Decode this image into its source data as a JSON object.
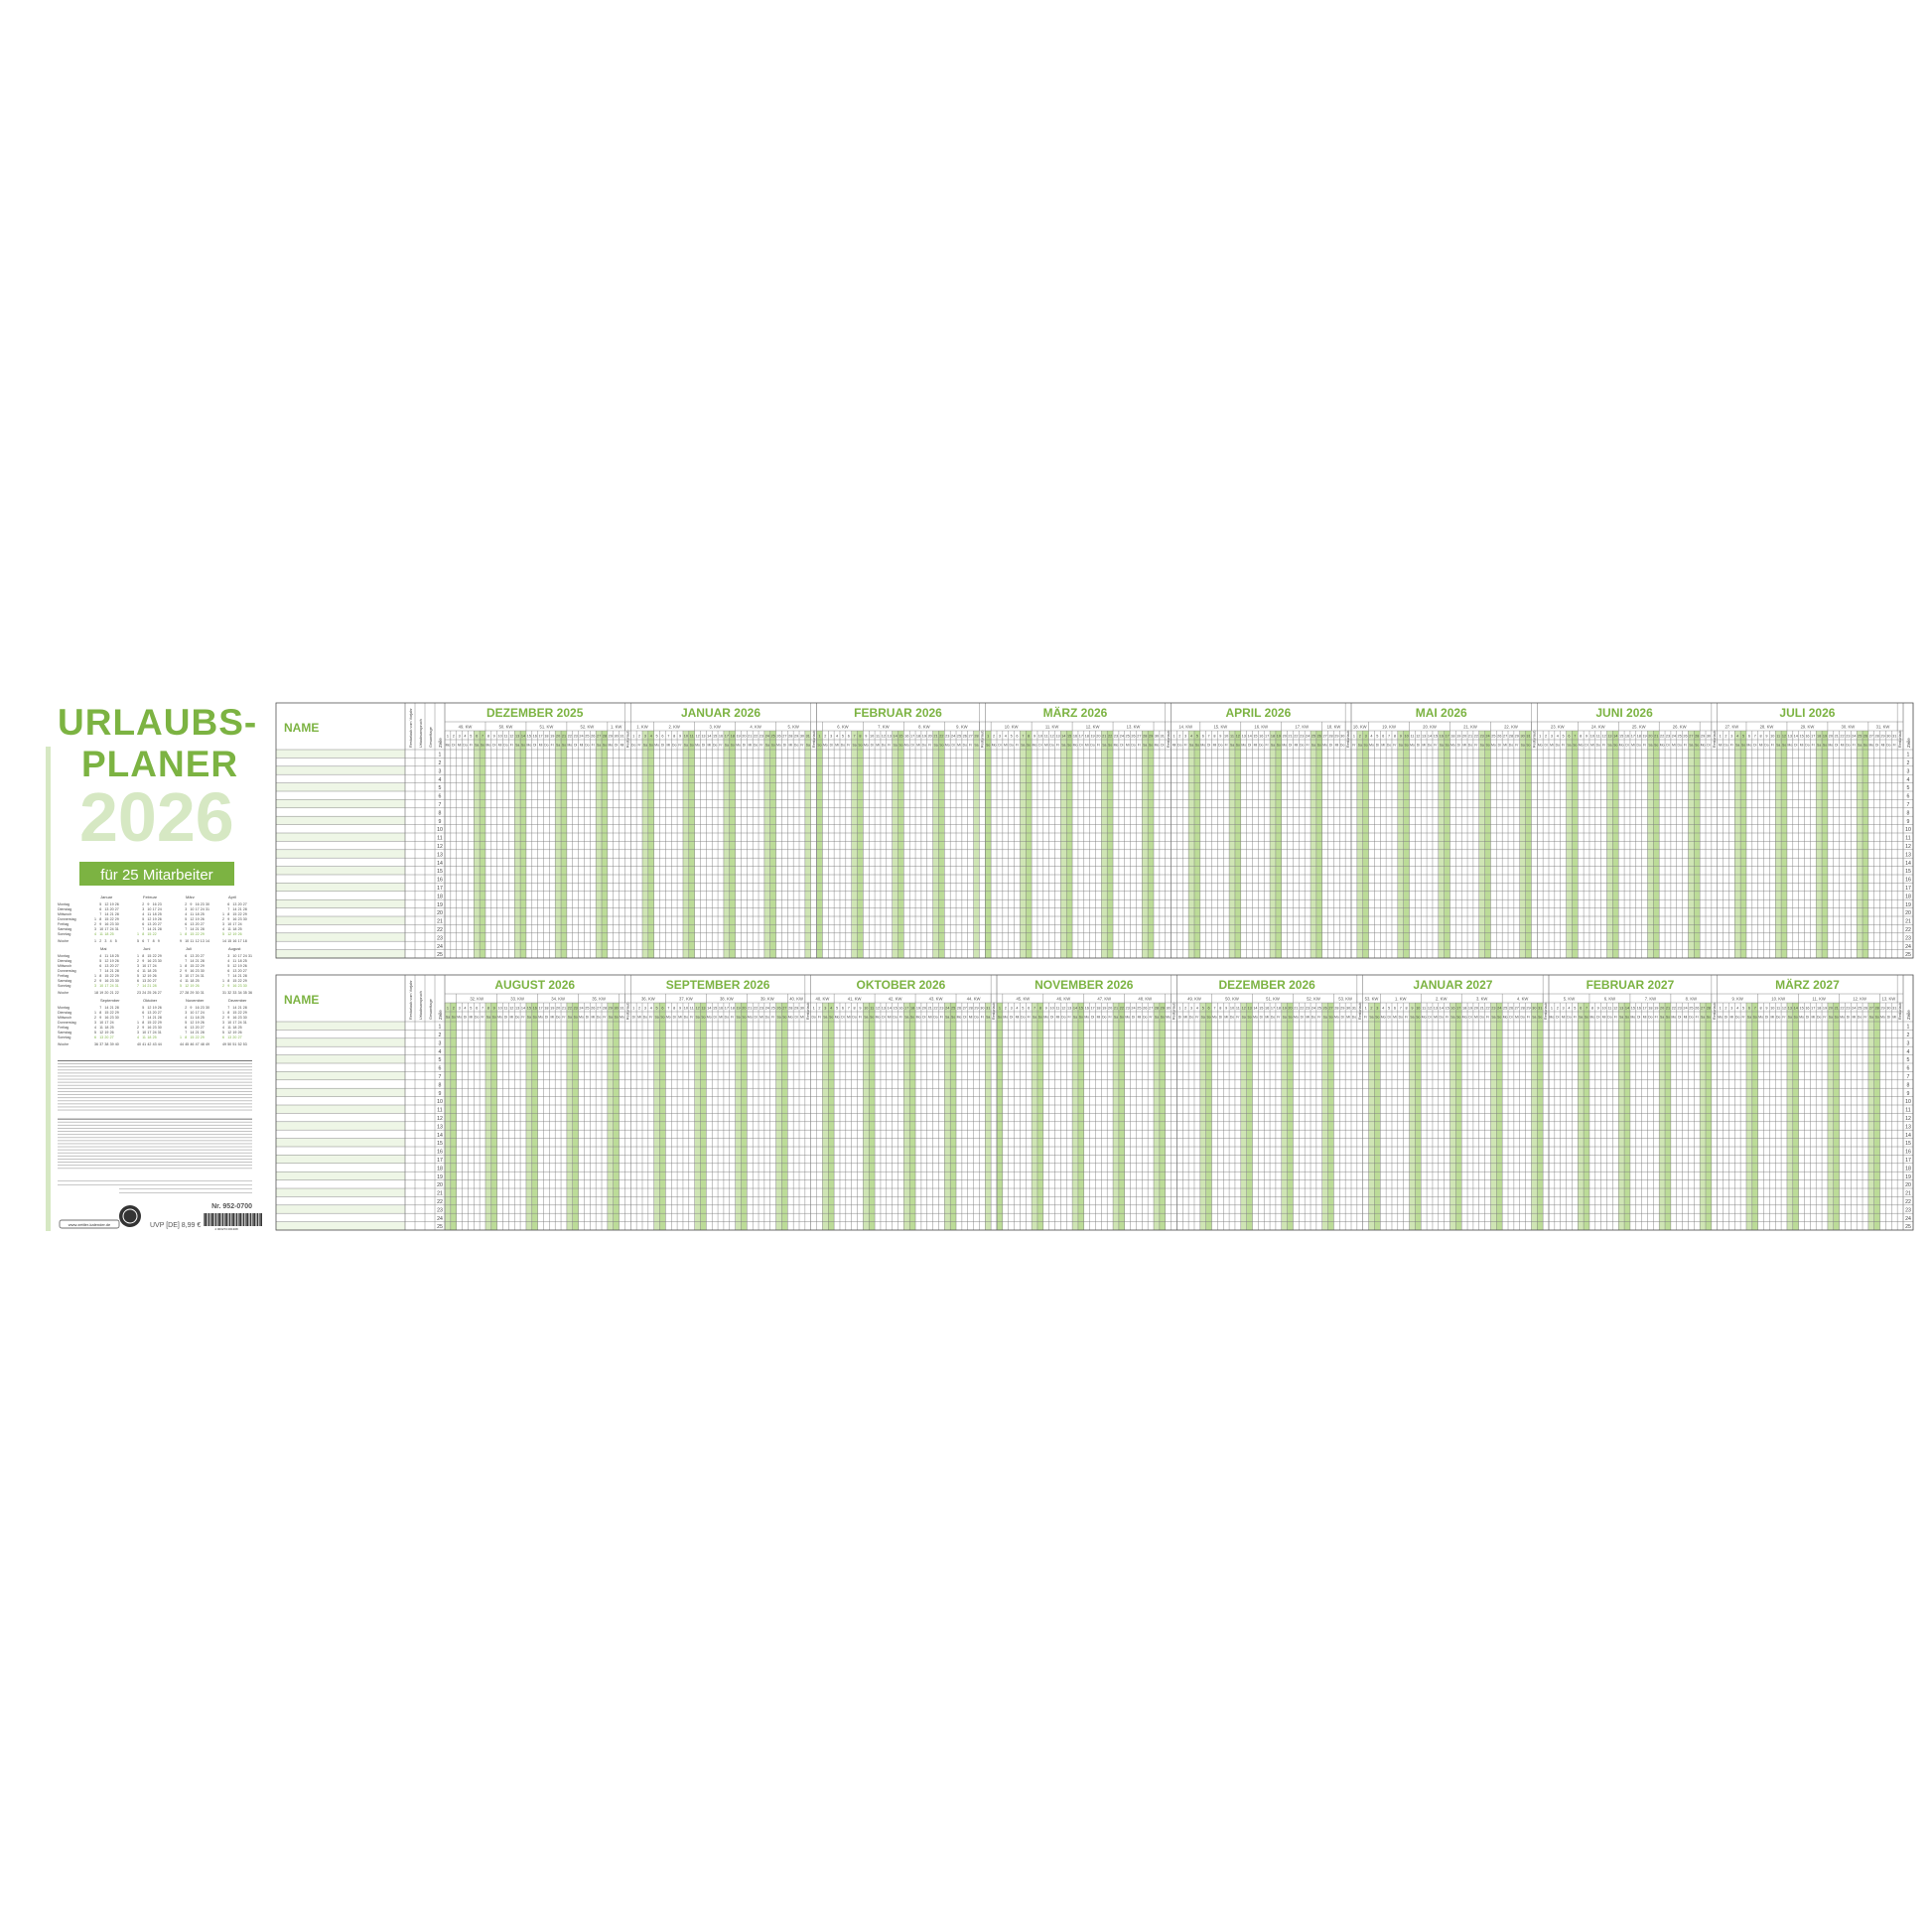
{
  "colors": {
    "accent": "#7cb342",
    "accent_light": "#d6e8c3",
    "weekend": "#cfe5b4",
    "grid": "#7a7a7a",
    "row_tint": "#eef6e6"
  },
  "cover": {
    "title_line1": "URLAUBS-",
    "title_line2": "PLANER",
    "year": "2026",
    "subtitle": "für 25 Mitarbeiter",
    "product_number": "Nr. 952-0700",
    "price": "UVP [DE] 8,99 €",
    "website": "www.zettler-kalender.de",
    "barcode_digits": "4 003273 061308"
  },
  "mini_calendar": {
    "year": 2026,
    "months": [
      "Januar",
      "Februar",
      "März",
      "April",
      "Mai",
      "Juni",
      "Juli",
      "August",
      "September",
      "Oktober",
      "November",
      "Dezember"
    ],
    "weekdays": [
      "Montag",
      "Dienstag",
      "Mittwoch",
      "Donnerstag",
      "Freitag",
      "Samstag",
      "Sonntag"
    ],
    "week_label": "Woche"
  },
  "planner": {
    "name_header": "NAME",
    "col_carryover": "Resturlaub vom Vorjahr",
    "col_entitlement": "Urlaubsanspruch",
    "col_total": "Gesamttage",
    "col_row": "Zeile",
    "rest_label": "Resturlaub",
    "kw_suffix": ". KW",
    "weekday_abbr": [
      "Mo",
      "Di",
      "Mi",
      "Do",
      "Fr",
      "Sa",
      "So"
    ],
    "rows": 25,
    "blocks": [
      {
        "months": [
          {
            "label": "DEZEMBER 2025",
            "year": 2025,
            "month": 12
          },
          {
            "label": "JANUAR 2026",
            "year": 2026,
            "month": 1
          },
          {
            "label": "FEBRUAR 2026",
            "year": 2026,
            "month": 2
          },
          {
            "label": "MÄRZ 2026",
            "year": 2026,
            "month": 3
          },
          {
            "label": "APRIL 2026",
            "year": 2026,
            "month": 4
          },
          {
            "label": "MAI 2026",
            "year": 2026,
            "month": 5
          },
          {
            "label": "JUNI 2026",
            "year": 2026,
            "month": 6
          },
          {
            "label": "JULI 2026",
            "year": 2026,
            "month": 7
          }
        ]
      },
      {
        "months": [
          {
            "label": "AUGUST 2026",
            "year": 2026,
            "month": 8
          },
          {
            "label": "SEPTEMBER 2026",
            "year": 2026,
            "month": 9
          },
          {
            "label": "OKTOBER 2026",
            "year": 2026,
            "month": 10
          },
          {
            "label": "NOVEMBER 2026",
            "year": 2026,
            "month": 11
          },
          {
            "label": "DEZEMBER 2026",
            "year": 2026,
            "month": 12
          },
          {
            "label": "JANUAR 2027",
            "year": 2027,
            "month": 1
          },
          {
            "label": "FEBRUAR 2027",
            "year": 2027,
            "month": 2
          },
          {
            "label": "MÄRZ 2027",
            "year": 2027,
            "month": 3
          }
        ]
      }
    ]
  }
}
